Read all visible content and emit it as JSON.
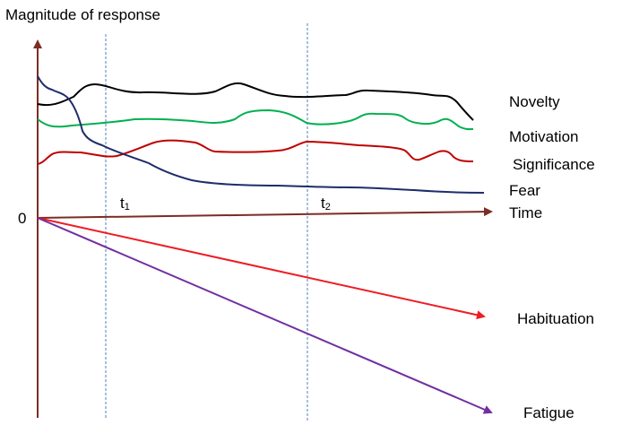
{
  "y_axis_label": "Magnitude of response",
  "x_axis_label": "Time",
  "origin_label": "0",
  "markers": [
    {
      "base": "t",
      "sub": "1"
    },
    {
      "base": "t",
      "sub": "2"
    }
  ],
  "curves": [
    {
      "label": "Novelty",
      "color": "#000000"
    },
    {
      "label": "Motivation",
      "color": "#00b050"
    },
    {
      "label": "Significance",
      "color": "#c00000"
    },
    {
      "label": "Fear",
      "color": "#1f2d6b"
    }
  ],
  "lines": [
    {
      "label": "Habituation",
      "color": "#ee1c25"
    },
    {
      "label": "Fatigue",
      "color": "#7030a0"
    }
  ],
  "colors": {
    "axis": "#7b2d26",
    "marker_line": "#4f81bd"
  }
}
